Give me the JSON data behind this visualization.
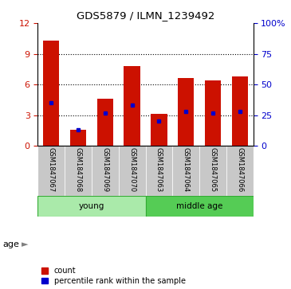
{
  "title": "GDS5879 / ILMN_1239492",
  "samples": [
    "GSM1847067",
    "GSM1847068",
    "GSM1847069",
    "GSM1847070",
    "GSM1847063",
    "GSM1847064",
    "GSM1847065",
    "GSM1847066"
  ],
  "counts": [
    10.3,
    1.6,
    4.6,
    7.8,
    3.1,
    6.6,
    6.4,
    6.8
  ],
  "percentiles": [
    35,
    13,
    27,
    33,
    20,
    28,
    27,
    28
  ],
  "groups": [
    {
      "label": "young",
      "start": 0,
      "end": 4,
      "color": "#aaeaaa"
    },
    {
      "label": "middle age",
      "start": 4,
      "end": 8,
      "color": "#55cc55"
    }
  ],
  "ylim_left": [
    0,
    12
  ],
  "ylim_right": [
    0,
    100
  ],
  "yticks_left": [
    0,
    3,
    6,
    9,
    12
  ],
  "yticks_right": [
    0,
    25,
    50,
    75,
    100
  ],
  "bar_color": "#cc1100",
  "marker_color": "#0000cc",
  "sample_bg_color": "#c8c8c8",
  "age_label": "age",
  "legend_count": "count",
  "legend_percentile": "percentile rank within the sample"
}
